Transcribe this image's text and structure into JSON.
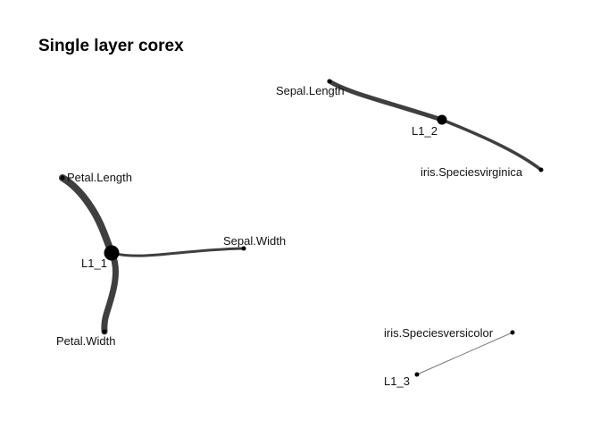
{
  "title": "Single layer corex",
  "nodes": [
    {
      "id": "L1_1",
      "label": "L1_1",
      "role": "latent"
    },
    {
      "id": "L1_2",
      "label": "L1_2",
      "role": "latent"
    },
    {
      "id": "L1_3",
      "label": "L1_3",
      "role": "latent"
    },
    {
      "id": "petal_length",
      "label": "Petal.Length",
      "role": "observed"
    },
    {
      "id": "petal_width",
      "label": "Petal.Width",
      "role": "observed"
    },
    {
      "id": "sepal_width",
      "label": "Sepal.Width",
      "role": "observed"
    },
    {
      "id": "sepal_length",
      "label": "Sepal.Length",
      "role": "observed"
    },
    {
      "id": "iris_virginica",
      "label": "iris.Speciesvirginica",
      "role": "observed"
    },
    {
      "id": "iris_versicolor",
      "label": "iris.Speciesversicolor",
      "role": "observed"
    }
  ],
  "edges": [
    {
      "source": "L1_1",
      "target": "petal_length",
      "strength": "strong"
    },
    {
      "source": "L1_1",
      "target": "petal_width",
      "strength": "strong"
    },
    {
      "source": "L1_1",
      "target": "sepal_width",
      "strength": "medium"
    },
    {
      "source": "L1_2",
      "target": "sepal_length",
      "strength": "strong"
    },
    {
      "source": "L1_2",
      "target": "iris_virginica",
      "strength": "medium"
    },
    {
      "source": "L1_3",
      "target": "iris_versicolor",
      "strength": "weak"
    }
  ]
}
